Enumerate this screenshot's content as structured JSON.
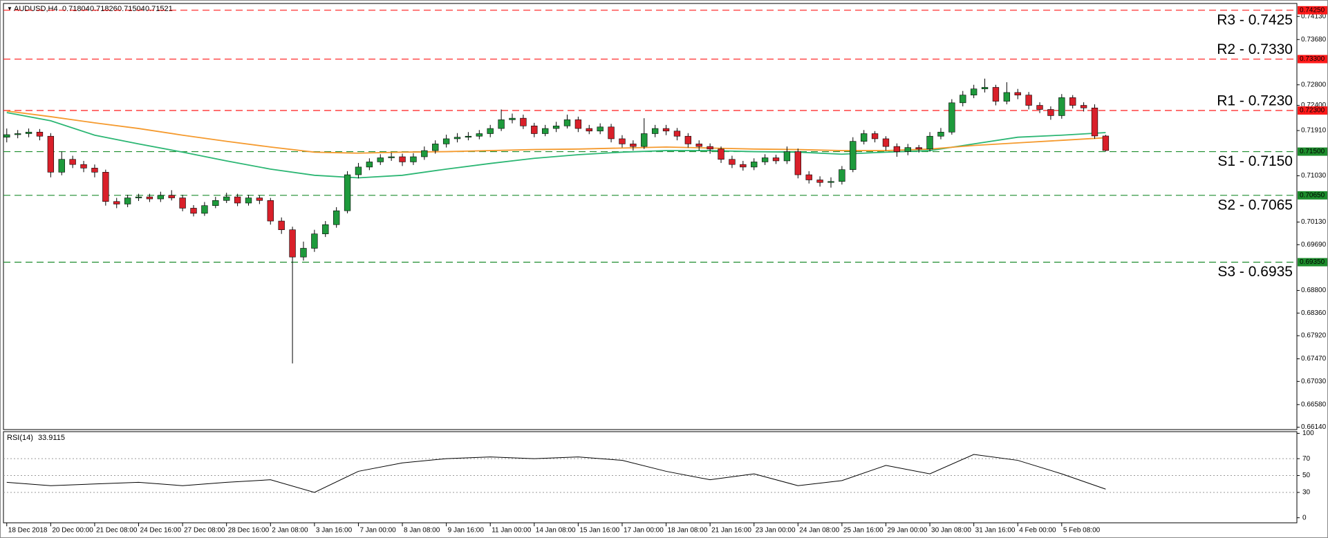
{
  "chart_data": [
    {
      "type": "candlestick",
      "title": "AUDUSD,H4",
      "xlim": [
        -0.3,
        117.4
      ],
      "ylim": [
        0.66094,
        0.74382
      ],
      "xticks": [
        {
          "value": 0,
          "label": "18 Dec 2018"
        },
        {
          "value": 4,
          "label": "20 Dec 00:00"
        },
        {
          "value": 8,
          "label": "21 Dec 08:00"
        },
        {
          "value": 12,
          "label": "24 Dec 16:00"
        },
        {
          "value": 16,
          "label": "27 Dec 08:00"
        },
        {
          "value": 20,
          "label": "28 Dec 16:00"
        },
        {
          "value": 24,
          "label": "2 Jan 08:00"
        },
        {
          "value": 28,
          "label": "3 Jan 16:00"
        },
        {
          "value": 32,
          "label": "7 Jan 00:00"
        },
        {
          "value": 36,
          "label": "8 Jan 08:00"
        },
        {
          "value": 40,
          "label": "9 Jan 16:00"
        },
        {
          "value": 44,
          "label": "11 Jan 00:00"
        },
        {
          "value": 48,
          "label": "14 Jan 08:00"
        },
        {
          "value": 52,
          "label": "15 Jan 16:00"
        },
        {
          "value": 56,
          "label": "17 Jan 00:00"
        },
        {
          "value": 60,
          "label": "18 Jan 08:00"
        },
        {
          "value": 64,
          "label": "21 Jan 16:00"
        },
        {
          "value": 68,
          "label": "23 Jan 00:00"
        },
        {
          "value": 72,
          "label": "24 Jan 08:00"
        },
        {
          "value": 76,
          "label": "25 Jan 16:00"
        },
        {
          "value": 80,
          "label": "29 Jan 00:00"
        },
        {
          "value": 84,
          "label": "30 Jan 08:00"
        },
        {
          "value": 88,
          "label": "31 Jan 16:00"
        },
        {
          "value": 92,
          "label": "4 Feb 00:00"
        },
        {
          "value": 96,
          "label": "5 Feb 08:00"
        }
      ],
      "yticks": [
        {
          "value": 0.7413,
          "label": "0.74130"
        },
        {
          "value": 0.7368,
          "label": "0.73680"
        },
        {
          "value": 0.728,
          "label": "0.72800"
        },
        {
          "value": 0.724,
          "label": "0.72400"
        },
        {
          "value": 0.7191,
          "label": "0.71910"
        },
        {
          "value": 0.7103,
          "label": "0.71030"
        },
        {
          "value": 0.7013,
          "label": "0.70130"
        },
        {
          "value": 0.6969,
          "label": "0.69690"
        },
        {
          "value": 0.688,
          "label": "0.68800"
        },
        {
          "value": 0.6836,
          "label": "0.68360"
        },
        {
          "value": 0.6792,
          "label": "0.67920"
        },
        {
          "value": 0.6747,
          "label": "0.67470"
        },
        {
          "value": 0.6703,
          "label": "0.67030"
        },
        {
          "value": 0.6658,
          "label": "0.66580"
        },
        {
          "value": 0.6614,
          "label": "0.66140"
        }
      ],
      "up_color": "#1e9a3c",
      "down_color": "#d9202a",
      "open": [
        0.7178,
        0.7183,
        0.7185,
        0.7188,
        0.718,
        0.711,
        0.7135,
        0.7125,
        0.7118,
        0.711,
        0.7053,
        0.7048,
        0.706,
        0.7062,
        0.7058,
        0.7065,
        0.706,
        0.704,
        0.703,
        0.7045,
        0.7055,
        0.7062,
        0.705,
        0.706,
        0.7055,
        0.7015,
        0.6998,
        0.6945,
        0.6962,
        0.699,
        0.7008,
        0.7035,
        0.7105,
        0.712,
        0.713,
        0.7138,
        0.714,
        0.713,
        0.714,
        0.7152,
        0.7165,
        0.7175,
        0.7178,
        0.718,
        0.7185,
        0.7195,
        0.7212,
        0.7215,
        0.72,
        0.7185,
        0.7195,
        0.72,
        0.7212,
        0.7195,
        0.719,
        0.7198,
        0.7175,
        0.7165,
        0.716,
        0.7185,
        0.7195,
        0.719,
        0.718,
        0.7165,
        0.716,
        0.7155,
        0.7135,
        0.7125,
        0.712,
        0.713,
        0.7138,
        0.7132,
        0.715,
        0.7105,
        0.7095,
        0.709,
        0.7092,
        0.7115,
        0.717,
        0.7185,
        0.7175,
        0.716,
        0.715,
        0.7158,
        0.7155,
        0.718,
        0.7188,
        0.7245,
        0.726,
        0.7272,
        0.7275,
        0.7248,
        0.7265,
        0.726,
        0.724,
        0.7232,
        0.722,
        0.7255,
        0.724,
        0.7235,
        0.71804
      ],
      "high": [
        0.7195,
        0.7192,
        0.7195,
        0.7194,
        0.7186,
        0.715,
        0.7142,
        0.7132,
        0.7125,
        0.7115,
        0.706,
        0.7066,
        0.7068,
        0.7068,
        0.7072,
        0.7075,
        0.7066,
        0.7046,
        0.7052,
        0.7062,
        0.707,
        0.7068,
        0.7066,
        0.7065,
        0.706,
        0.7022,
        0.7004,
        0.6975,
        0.6998,
        0.7015,
        0.7042,
        0.7112,
        0.7128,
        0.7137,
        0.7145,
        0.7148,
        0.7146,
        0.7147,
        0.716,
        0.7172,
        0.7183,
        0.7186,
        0.7188,
        0.7192,
        0.7202,
        0.7232,
        0.7224,
        0.7222,
        0.7206,
        0.7202,
        0.7208,
        0.7222,
        0.7218,
        0.7202,
        0.7205,
        0.7204,
        0.7182,
        0.7172,
        0.7215,
        0.7202,
        0.7202,
        0.7196,
        0.7186,
        0.7172,
        0.7166,
        0.716,
        0.7142,
        0.7132,
        0.7137,
        0.7145,
        0.7144,
        0.716,
        0.7156,
        0.7112,
        0.7102,
        0.71,
        0.7122,
        0.7178,
        0.7192,
        0.719,
        0.718,
        0.7166,
        0.7165,
        0.7163,
        0.7188,
        0.7196,
        0.7252,
        0.7268,
        0.728,
        0.7292,
        0.728,
        0.7285,
        0.7272,
        0.7266,
        0.7246,
        0.7238,
        0.7262,
        0.726,
        0.7246,
        0.7242,
        0.71826
      ],
      "low": [
        0.7168,
        0.7176,
        0.7178,
        0.7172,
        0.71,
        0.7104,
        0.7118,
        0.711,
        0.71,
        0.7045,
        0.704,
        0.7042,
        0.7054,
        0.7052,
        0.7052,
        0.7055,
        0.7034,
        0.7024,
        0.7025,
        0.704,
        0.705,
        0.7044,
        0.7045,
        0.7048,
        0.7008,
        0.699,
        0.6738,
        0.6938,
        0.6955,
        0.6984,
        0.7002,
        0.703,
        0.7098,
        0.7114,
        0.7124,
        0.7132,
        0.7122,
        0.7124,
        0.7134,
        0.7146,
        0.7158,
        0.7168,
        0.7172,
        0.7174,
        0.7178,
        0.719,
        0.7205,
        0.7194,
        0.7178,
        0.718,
        0.7188,
        0.7195,
        0.7188,
        0.7184,
        0.7184,
        0.7168,
        0.7158,
        0.7152,
        0.7155,
        0.7178,
        0.7182,
        0.7172,
        0.7158,
        0.7152,
        0.7146,
        0.7128,
        0.7118,
        0.7113,
        0.7114,
        0.7124,
        0.7126,
        0.7126,
        0.7098,
        0.7088,
        0.7082,
        0.708,
        0.7086,
        0.711,
        0.7164,
        0.7168,
        0.7152,
        0.714,
        0.7143,
        0.7148,
        0.715,
        0.7174,
        0.7183,
        0.7238,
        0.7254,
        0.7265,
        0.724,
        0.7242,
        0.7252,
        0.7232,
        0.7225,
        0.7212,
        0.7214,
        0.7234,
        0.7228,
        0.7175,
        0.71504
      ],
      "close": [
        0.7183,
        0.7185,
        0.7188,
        0.718,
        0.711,
        0.7135,
        0.7125,
        0.7118,
        0.711,
        0.7053,
        0.7048,
        0.706,
        0.7062,
        0.7058,
        0.7065,
        0.706,
        0.704,
        0.703,
        0.7045,
        0.7055,
        0.7062,
        0.705,
        0.706,
        0.7055,
        0.7015,
        0.6998,
        0.6945,
        0.6962,
        0.699,
        0.7008,
        0.7035,
        0.7105,
        0.712,
        0.713,
        0.7138,
        0.714,
        0.713,
        0.714,
        0.7152,
        0.7165,
        0.7175,
        0.7178,
        0.718,
        0.7185,
        0.7195,
        0.7212,
        0.7215,
        0.72,
        0.7185,
        0.7195,
        0.72,
        0.7212,
        0.7195,
        0.719,
        0.7198,
        0.7175,
        0.7165,
        0.716,
        0.7185,
        0.7195,
        0.719,
        0.718,
        0.7165,
        0.716,
        0.7155,
        0.7135,
        0.7125,
        0.712,
        0.713,
        0.7138,
        0.7132,
        0.715,
        0.7105,
        0.7095,
        0.709,
        0.7092,
        0.7115,
        0.717,
        0.7185,
        0.7175,
        0.716,
        0.715,
        0.7158,
        0.7155,
        0.718,
        0.7188,
        0.7245,
        0.726,
        0.7272,
        0.7275,
        0.7248,
        0.7265,
        0.726,
        0.724,
        0.7232,
        0.722,
        0.7255,
        0.724,
        0.7235,
        0.71804,
        0.71521
      ],
      "moving_averages": {
        "x": [
          0,
          4,
          8,
          12,
          16,
          20,
          24,
          28,
          32,
          36,
          40,
          44,
          48,
          52,
          56,
          60,
          64,
          68,
          72,
          76,
          80,
          84,
          88,
          92,
          96,
          100
        ],
        "series": [
          {
            "color": "#2bb673",
            "values": [
              0.7226,
              0.721,
              0.7182,
              0.7165,
              0.7149,
              0.7132,
              0.7116,
              0.7104,
              0.7099,
              0.7104,
              0.7116,
              0.7127,
              0.7137,
              0.7144,
              0.7149,
              0.7152,
              0.7152,
              0.715,
              0.7149,
              0.7145,
              0.7149,
              0.7152,
              0.7165,
              0.7178,
              0.7182,
              0.7187
            ]
          },
          {
            "color": "#f59a2e",
            "values": [
              0.7229,
              0.7218,
              0.7206,
              0.7195,
              0.7182,
              0.717,
              0.7159,
              0.7149,
              0.7147,
              0.7149,
              0.715,
              0.7152,
              0.7154,
              0.7155,
              0.7157,
              0.7159,
              0.7157,
              0.7155,
              0.7154,
              0.7152,
              0.7152,
              0.7155,
              0.7162,
              0.7167,
              0.7172,
              0.7177
            ]
          }
        ]
      },
      "levels": [
        {
          "label": "R3 - 0.7425",
          "value": 0.7425,
          "tag": "0.74250",
          "color": "#ff1a1a"
        },
        {
          "label": "R2 - 0.7330",
          "value": 0.733,
          "tag": "0.73300",
          "color": "#ff1a1a"
        },
        {
          "label": "R1 - 0.7230",
          "value": 0.723,
          "tag": "0.72300",
          "color": "#ff1a1a"
        },
        {
          "label": "S1 - 0.7150",
          "value": 0.715,
          "tag": "0.71500",
          "color": "#1c8c2c"
        },
        {
          "label": "S2 - 0.7065",
          "value": 0.7065,
          "tag": "0.70650",
          "color": "#1c8c2c"
        },
        {
          "label": "S3 - 0.6935",
          "value": 0.6935,
          "tag": "0.69350",
          "color": "#1c8c2c"
        }
      ]
    },
    {
      "type": "line",
      "title": "RSI(14)",
      "color": "#000000",
      "x": [
        0,
        4,
        8,
        12,
        16,
        20,
        24,
        28,
        32,
        36,
        40,
        44,
        48,
        52,
        56,
        60,
        64,
        68,
        72,
        76,
        80,
        84,
        88,
        92,
        96,
        100
      ],
      "values": [
        42,
        38,
        40,
        42,
        38,
        42,
        45,
        30,
        55,
        65,
        70,
        72,
        70,
        72,
        68,
        55,
        45,
        52,
        38,
        44,
        62,
        52,
        75,
        68,
        52,
        33.9115
      ],
      "ylim": [
        -6,
        102
      ],
      "yticks": [
        100,
        70,
        50,
        30,
        0
      ]
    }
  ]
}
